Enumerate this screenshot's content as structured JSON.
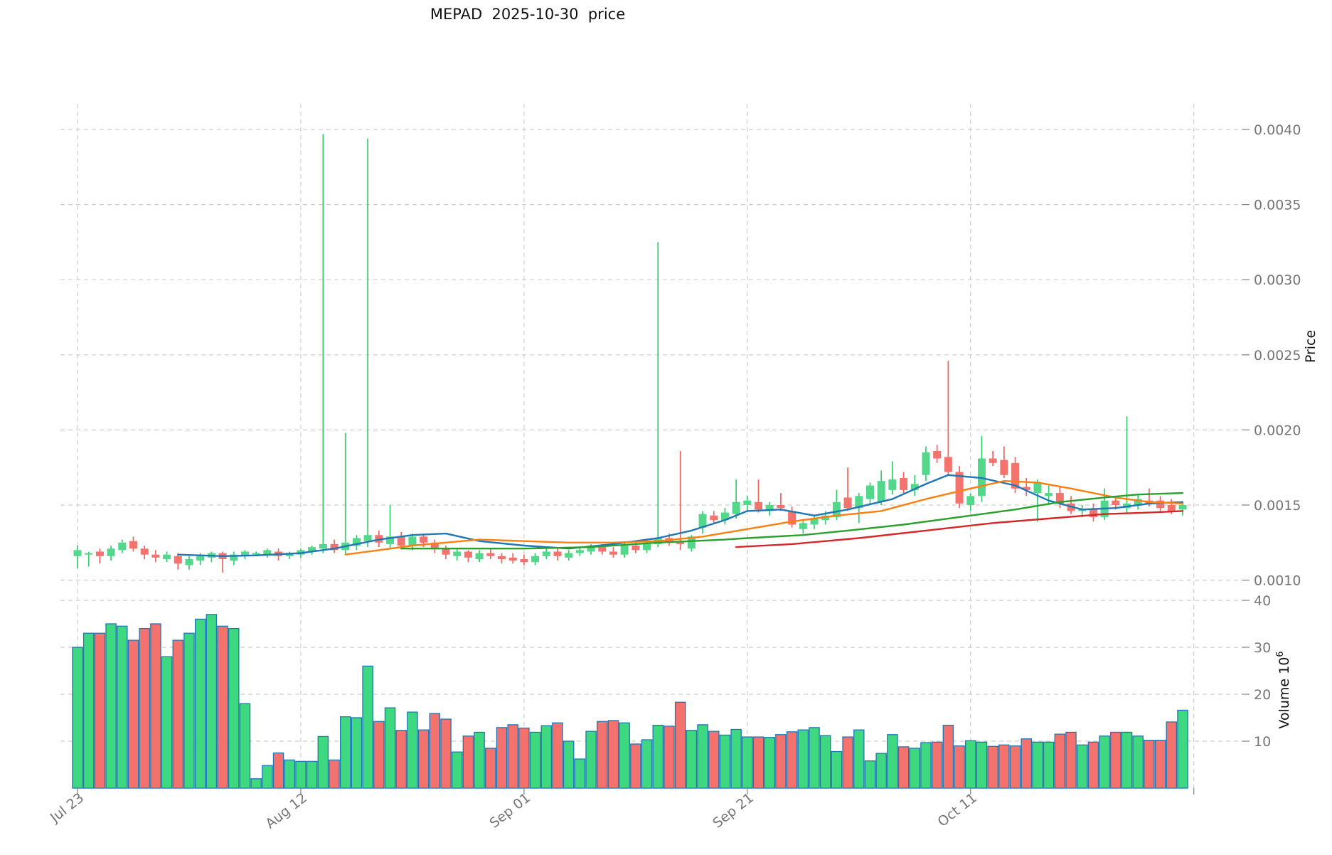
{
  "title": "MEPAD  2025-10-30  price",
  "colors": {
    "candle_up": "#53d78a",
    "candle_down": "#f4736e",
    "wick_up": "#2fd06a",
    "wick_down": "#f2635e",
    "volume_up": "#3ed881",
    "volume_down": "#f4726d",
    "volume_edge": "#2077b4",
    "ma_blue": "#1f77b4",
    "ma_orange": "#ff7f0e",
    "ma_green": "#2ca02c",
    "ma_red": "#d62728",
    "grid": "#cdcdcd",
    "tick_text": "#757575",
    "axis_text": "#111111",
    "tick_mark": "#8a8a8a"
  },
  "price_axis": {
    "label": "Price",
    "tick_labels": [
      "0.0040",
      "0.0035",
      "0.0030",
      "0.0025",
      "0.0020",
      "0.0015",
      "0.0010"
    ],
    "tick_values": [
      400,
      350,
      300,
      250,
      200,
      150,
      100
    ]
  },
  "volume_axis": {
    "label": "Volume",
    "unit_base": "10",
    "unit_exponent": "6",
    "tick_labels": [
      "40",
      "30",
      "20",
      "10"
    ],
    "tick_values": [
      40,
      30,
      20,
      10
    ]
  },
  "x_axis": {
    "tick_labels": [
      "Jul 23",
      "Aug 12",
      "Sep 01",
      "Sep 21",
      "Oct 11"
    ],
    "tick_day_indices": [
      0,
      20,
      40,
      60,
      80
    ],
    "extra_gridline_day_index": 100
  },
  "chart_data": {
    "type": "candlestick-with-volume",
    "price_unit": "1e-5",
    "ylim_price": [
      100,
      400
    ],
    "ylim_volume_millions": [
      0,
      43
    ],
    "dates": [
      "2025-07-23",
      "2025-07-24",
      "2025-07-25",
      "2025-07-26",
      "2025-07-27",
      "2025-07-28",
      "2025-07-29",
      "2025-07-30",
      "2025-07-31",
      "2025-08-01",
      "2025-08-02",
      "2025-08-03",
      "2025-08-04",
      "2025-08-05",
      "2025-08-06",
      "2025-08-07",
      "2025-08-08",
      "2025-08-09",
      "2025-08-10",
      "2025-08-11",
      "2025-08-12",
      "2025-08-13",
      "2025-08-14",
      "2025-08-15",
      "2025-08-16",
      "2025-08-17",
      "2025-08-18",
      "2025-08-19",
      "2025-08-20",
      "2025-08-21",
      "2025-08-22",
      "2025-08-23",
      "2025-08-24",
      "2025-08-25",
      "2025-08-26",
      "2025-08-27",
      "2025-08-28",
      "2025-08-29",
      "2025-08-30",
      "2025-08-31",
      "2025-09-01",
      "2025-09-02",
      "2025-09-03",
      "2025-09-04",
      "2025-09-05",
      "2025-09-06",
      "2025-09-07",
      "2025-09-08",
      "2025-09-09",
      "2025-09-10",
      "2025-09-11",
      "2025-09-12",
      "2025-09-13",
      "2025-09-14",
      "2025-09-15",
      "2025-09-16",
      "2025-09-17",
      "2025-09-18",
      "2025-09-19",
      "2025-09-20",
      "2025-09-21",
      "2025-09-22",
      "2025-09-23",
      "2025-09-24",
      "2025-09-25",
      "2025-09-26",
      "2025-09-27",
      "2025-09-28",
      "2025-09-29",
      "2025-09-30",
      "2025-10-01",
      "2025-10-02",
      "2025-10-03",
      "2025-10-04",
      "2025-10-05",
      "2025-10-06",
      "2025-10-07",
      "2025-10-08",
      "2025-10-09",
      "2025-10-10",
      "2025-10-11",
      "2025-10-12",
      "2025-10-13",
      "2025-10-14",
      "2025-10-15",
      "2025-10-16",
      "2025-10-17",
      "2025-10-18",
      "2025-10-19",
      "2025-10-20",
      "2025-10-21",
      "2025-10-22",
      "2025-10-23",
      "2025-10-24",
      "2025-10-25",
      "2025-10-26",
      "2025-10-27",
      "2025-10-28",
      "2025-10-29",
      "2025-10-30"
    ],
    "ohlc_1e5": [
      [
        116,
        123,
        108,
        120
      ],
      [
        117,
        119,
        109,
        118
      ],
      [
        119,
        121,
        111,
        116
      ],
      [
        116,
        123,
        113,
        121
      ],
      [
        120,
        127,
        118,
        125
      ],
      [
        126,
        129,
        119,
        121
      ],
      [
        121,
        123,
        114,
        117
      ],
      [
        117,
        120,
        112,
        115
      ],
      [
        114,
        119,
        112,
        117
      ],
      [
        116,
        118,
        107,
        111
      ],
      [
        110,
        116,
        107,
        114
      ],
      [
        113,
        118,
        110,
        116
      ],
      [
        115,
        119,
        112,
        118
      ],
      [
        118,
        119,
        105,
        114
      ],
      [
        113,
        119,
        110,
        117
      ],
      [
        116,
        120,
        114,
        119
      ],
      [
        117,
        119,
        116,
        118
      ],
      [
        117,
        121,
        115,
        120
      ],
      [
        119,
        121,
        113,
        116
      ],
      [
        116,
        119,
        114,
        118
      ],
      [
        117,
        121,
        115,
        120
      ],
      [
        119,
        123,
        117,
        122
      ],
      [
        121,
        397,
        118,
        124
      ],
      [
        124,
        127,
        118,
        120
      ],
      [
        120,
        198,
        117,
        125
      ],
      [
        123,
        130,
        120,
        128
      ],
      [
        126,
        394,
        122,
        130
      ],
      [
        130,
        133,
        122,
        125
      ],
      [
        124,
        150,
        121,
        129
      ],
      [
        129,
        132,
        121,
        123
      ],
      [
        123,
        131,
        120,
        129
      ],
      [
        129,
        131,
        122,
        125
      ],
      [
        125,
        127,
        118,
        121
      ],
      [
        121,
        123,
        114,
        117
      ],
      [
        116,
        121,
        113,
        119
      ],
      [
        119,
        120,
        112,
        115
      ],
      [
        114,
        120,
        112,
        118
      ],
      [
        118,
        121,
        114,
        116
      ],
      [
        116,
        118,
        111,
        114
      ],
      [
        115,
        118,
        111,
        113
      ],
      [
        114,
        117,
        110,
        112
      ],
      [
        112,
        118,
        110,
        116
      ],
      [
        116,
        121,
        114,
        119
      ],
      [
        119,
        121,
        113,
        116
      ],
      [
        115,
        120,
        113,
        118
      ],
      [
        118,
        122,
        116,
        120
      ],
      [
        119,
        124,
        117,
        122
      ],
      [
        122,
        124,
        117,
        119
      ],
      [
        119,
        122,
        115,
        117
      ],
      [
        117,
        125,
        115,
        123
      ],
      [
        123,
        126,
        118,
        120
      ],
      [
        120,
        127,
        118,
        125
      ],
      [
        124,
        325,
        122,
        128
      ],
      [
        128,
        131,
        123,
        125
      ],
      [
        126,
        186,
        120,
        124
      ],
      [
        121,
        130,
        119,
        129
      ],
      [
        135,
        146,
        131,
        144
      ],
      [
        143,
        146,
        138,
        140
      ],
      [
        140,
        148,
        137,
        145
      ],
      [
        144,
        167,
        141,
        152
      ],
      [
        150,
        156,
        146,
        153
      ],
      [
        152,
        167,
        145,
        147
      ],
      [
        146,
        152,
        143,
        150
      ],
      [
        150,
        158,
        146,
        148
      ],
      [
        146,
        149,
        135,
        137
      ],
      [
        134,
        140,
        131,
        138
      ],
      [
        137,
        143,
        134,
        141
      ],
      [
        140,
        146,
        137,
        143
      ],
      [
        142,
        160,
        140,
        152
      ],
      [
        155,
        175,
        146,
        148
      ],
      [
        148,
        158,
        138,
        156
      ],
      [
        154,
        165,
        151,
        163
      ],
      [
        152,
        173,
        150,
        166
      ],
      [
        160,
        179,
        157,
        167
      ],
      [
        168,
        172,
        158,
        160
      ],
      [
        160,
        170,
        156,
        164
      ],
      [
        170,
        189,
        166,
        185
      ],
      [
        186,
        190,
        178,
        181
      ],
      [
        182,
        246,
        170,
        172
      ],
      [
        172,
        176,
        148,
        151
      ],
      [
        150,
        158,
        146,
        156
      ],
      [
        156,
        196,
        152,
        181
      ],
      [
        181,
        186,
        176,
        178
      ],
      [
        180,
        189,
        168,
        170
      ],
      [
        178,
        182,
        158,
        161
      ],
      [
        162,
        168,
        156,
        160
      ],
      [
        158,
        167,
        139,
        165
      ],
      [
        156,
        163,
        151,
        158
      ],
      [
        158,
        162,
        148,
        151
      ],
      [
        151,
        156,
        144,
        146
      ],
      [
        146,
        150,
        142,
        147
      ],
      [
        147,
        151,
        139,
        142
      ],
      [
        142,
        161,
        140,
        153
      ],
      [
        153,
        156,
        147,
        150
      ],
      [
        148,
        209,
        145,
        151
      ],
      [
        150,
        157,
        147,
        154
      ],
      [
        153,
        161,
        149,
        151
      ],
      [
        153,
        156,
        146,
        148
      ],
      [
        150,
        154,
        144,
        146
      ],
      [
        147,
        152,
        143,
        150
      ]
    ],
    "volume_millions": [
      30,
      33,
      33,
      35,
      34.5,
      31.5,
      34,
      35,
      28,
      31.5,
      33,
      36,
      37,
      34.5,
      34,
      18,
      2,
      4.8,
      7.5,
      6,
      5.7,
      5.7,
      11,
      6,
      15.2,
      15,
      26,
      14.2,
      17.1,
      12.3,
      16.2,
      12.4,
      15.9,
      14.7,
      7.7,
      11.1,
      11.9,
      8.5,
      12.9,
      13.5,
      12.8,
      11.9,
      13.3,
      13.9,
      10,
      6.2,
      12.1,
      14.2,
      14.4,
      13.9,
      9.4,
      10.3,
      13.4,
      13.2,
      18.3,
      12.3,
      13.5,
      12.1,
      11.3,
      12.5,
      10.9,
      10.9,
      10.8,
      11.4,
      12,
      12.4,
      12.9,
      11.2,
      7.8,
      10.9,
      12.4,
      5.8,
      7.4,
      11.4,
      8.8,
      8.5,
      9.7,
      9.8,
      13.4,
      9,
      10.1,
      9.8,
      8.9,
      9.2,
      9,
      10.5,
      9.8,
      9.8,
      11.5,
      11.9,
      9.2,
      9.8,
      11.1,
      11.9,
      11.9,
      11.1,
      10.2,
      10.2,
      14.1,
      16.6
    ],
    "moving_averages": [
      {
        "name": "ma-fast-blue",
        "color_key": "ma_blue",
        "points_day_price": [
          [
            9,
            117
          ],
          [
            13,
            116
          ],
          [
            16,
            116.5
          ],
          [
            20,
            118
          ],
          [
            23,
            121
          ],
          [
            27,
            127
          ],
          [
            30,
            130
          ],
          [
            33,
            131
          ],
          [
            36,
            126
          ],
          [
            40,
            123
          ],
          [
            44,
            121
          ],
          [
            48,
            124
          ],
          [
            52,
            128
          ],
          [
            55,
            133
          ],
          [
            58,
            140
          ],
          [
            60,
            146
          ],
          [
            63,
            147
          ],
          [
            66,
            143
          ],
          [
            69,
            147
          ],
          [
            73,
            154
          ],
          [
            76,
            164
          ],
          [
            78,
            170
          ],
          [
            81,
            168
          ],
          [
            84,
            163
          ],
          [
            87,
            153
          ],
          [
            90,
            147
          ],
          [
            93,
            148
          ],
          [
            96,
            151
          ],
          [
            99,
            152
          ]
        ]
      },
      {
        "name": "ma-mid-orange",
        "color_key": "ma_orange",
        "points_day_price": [
          [
            24,
            117
          ],
          [
            27,
            120
          ],
          [
            30,
            123
          ],
          [
            33,
            125
          ],
          [
            36,
            127
          ],
          [
            40,
            126
          ],
          [
            44,
            125
          ],
          [
            48,
            125
          ],
          [
            52,
            126
          ],
          [
            56,
            129
          ],
          [
            60,
            134
          ],
          [
            64,
            139
          ],
          [
            68,
            143
          ],
          [
            72,
            146
          ],
          [
            76,
            154
          ],
          [
            80,
            161
          ],
          [
            83,
            166
          ],
          [
            86,
            165
          ],
          [
            89,
            161
          ],
          [
            93,
            155
          ],
          [
            96,
            152
          ],
          [
            99,
            151
          ]
        ]
      },
      {
        "name": "ma-slow-green",
        "color_key": "ma_green",
        "points_day_price": [
          [
            29,
            121
          ],
          [
            34,
            121
          ],
          [
            40,
            121
          ],
          [
            46,
            122
          ],
          [
            52,
            125
          ],
          [
            58,
            127
          ],
          [
            60,
            128
          ],
          [
            65,
            130
          ],
          [
            69,
            133
          ],
          [
            74,
            137
          ],
          [
            79,
            142
          ],
          [
            84,
            147
          ],
          [
            88,
            152
          ],
          [
            92,
            155
          ],
          [
            95,
            157
          ],
          [
            99,
            158
          ]
        ]
      },
      {
        "name": "ma-long-red",
        "color_key": "ma_red",
        "points_day_price": [
          [
            59,
            122
          ],
          [
            64,
            124
          ],
          [
            70,
            128
          ],
          [
            76,
            133
          ],
          [
            82,
            138
          ],
          [
            87,
            141
          ],
          [
            92,
            144
          ],
          [
            96,
            145
          ],
          [
            99,
            146
          ]
        ]
      }
    ]
  }
}
